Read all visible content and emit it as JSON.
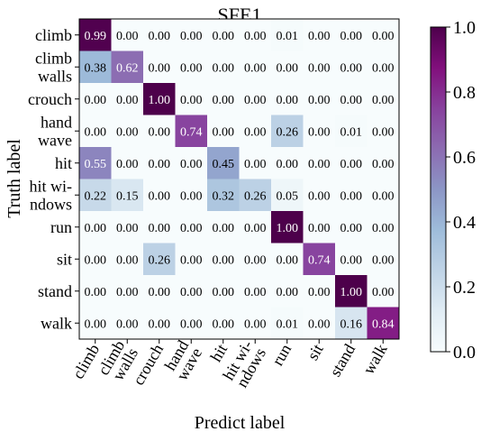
{
  "chart_data": {
    "type": "heatmap",
    "title": "SFE1",
    "xlabel": "Predict label",
    "ylabel": "Truth label",
    "row_labels": [
      [
        "climb"
      ],
      [
        "climb",
        "walls"
      ],
      [
        "crouch"
      ],
      [
        "hand",
        "wave"
      ],
      [
        "hit"
      ],
      [
        "hit wi-",
        "ndows"
      ],
      [
        "run"
      ],
      [
        "sit"
      ],
      [
        "stand"
      ],
      [
        "walk"
      ]
    ],
    "col_labels": [
      [
        "climb"
      ],
      [
        "climb",
        "walls"
      ],
      [
        "crouch"
      ],
      [
        "hand",
        "wave"
      ],
      [
        "hit"
      ],
      [
        "hit wi-",
        "ndows"
      ],
      [
        "run"
      ],
      [
        "sit"
      ],
      [
        "stand"
      ],
      [
        "walk"
      ]
    ],
    "values": [
      [
        "0.99",
        "0.00",
        "0.00",
        "0.00",
        "0.00",
        "0.00",
        "0.01",
        "0.00",
        "0.00",
        "0.00"
      ],
      [
        "0.38",
        "0.62",
        "0.00",
        "0.00",
        "0.00",
        "0.00",
        "0.00",
        "0.00",
        "0.00",
        "0.00"
      ],
      [
        "0.00",
        "0.00",
        "1.00",
        "0.00",
        "0.00",
        "0.00",
        "0.00",
        "0.00",
        "0.00",
        "0.00"
      ],
      [
        "0.00",
        "0.00",
        "0.00",
        "0.74",
        "0.00",
        "0.00",
        "0.26",
        "0.00",
        "0.01",
        "0.00"
      ],
      [
        "0.55",
        "0.00",
        "0.00",
        "0.00",
        "0.45",
        "0.00",
        "0.00",
        "0.00",
        "0.00",
        "0.00"
      ],
      [
        "0.22",
        "0.15",
        "0.00",
        "0.00",
        "0.32",
        "0.26",
        "0.05",
        "0.00",
        "0.00",
        "0.00"
      ],
      [
        "0.00",
        "0.00",
        "0.00",
        "0.00",
        "0.00",
        "0.00",
        "1.00",
        "0.00",
        "0.00",
        "0.00"
      ],
      [
        "0.00",
        "0.00",
        "0.26",
        "0.00",
        "0.00",
        "0.00",
        "0.00",
        "0.74",
        "0.00",
        "0.00"
      ],
      [
        "0.00",
        "0.00",
        "0.00",
        "0.00",
        "0.00",
        "0.00",
        "0.00",
        "0.00",
        "1.00",
        "0.00"
      ],
      [
        "0.00",
        "0.00",
        "0.00",
        "0.00",
        "0.00",
        "0.00",
        "0.01",
        "0.00",
        "0.16",
        "0.84"
      ]
    ],
    "colorbar": {
      "range": [
        0.0,
        1.0
      ],
      "ticks": [
        "0.0",
        "0.2",
        "0.4",
        "0.6",
        "0.8",
        "1.0"
      ],
      "colormap": "BuPu",
      "colors": [
        "#f7fcfd",
        "#e0ecf4",
        "#bfd3e6",
        "#9ebcda",
        "#8c96c6",
        "#8c6bb1",
        "#88419d",
        "#810f7c",
        "#4d004b"
      ]
    },
    "grid": false
  }
}
